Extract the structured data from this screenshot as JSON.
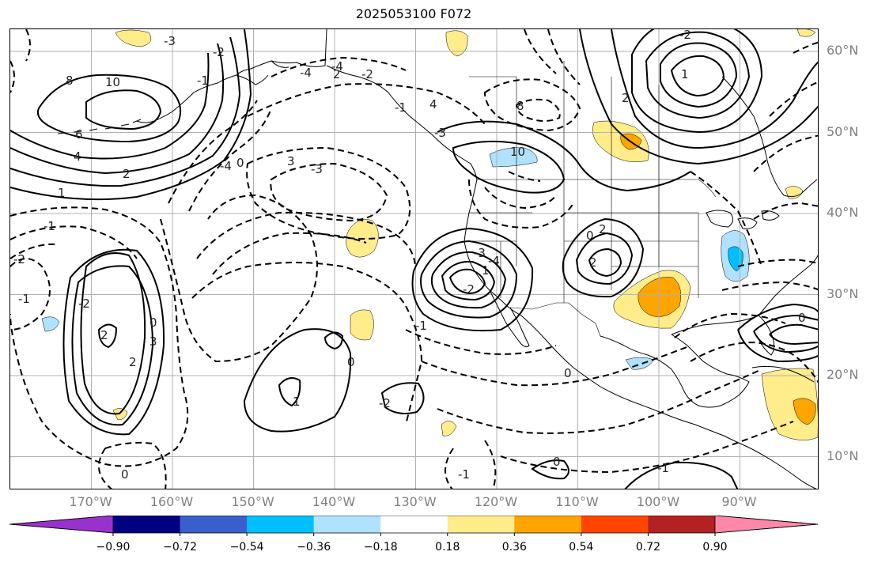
{
  "title": "2025053100 F072",
  "lat_labels": [
    {
      "text": "60°N",
      "lat": 60
    },
    {
      "text": "50°N",
      "lat": 50
    },
    {
      "text": "40°N",
      "lat": 40
    },
    {
      "text": "30°N",
      "lat": 30
    },
    {
      "text": "20°N",
      "lat": 20
    },
    {
      "text": "10°N",
      "lat": 10
    }
  ],
  "lon_labels": [
    {
      "text": "170°W",
      "lon": -170
    },
    {
      "text": "160°W",
      "lon": -160
    },
    {
      "text": "150°W",
      "lon": -150
    },
    {
      "text": "140°W",
      "lon": -140
    },
    {
      "text": "130°W",
      "lon": -130
    },
    {
      "text": "120°W",
      "lon": -120
    },
    {
      "text": "110°W",
      "lon": -110
    },
    {
      "text": "100°W",
      "lon": -100
    },
    {
      "text": "90°W",
      "lon": -90
    }
  ],
  "colorbar": {
    "tick_labels": [
      "−0.90",
      "−0.72",
      "−0.54",
      "−0.36",
      "−0.18",
      "0.18",
      "0.36",
      "0.54",
      "0.72",
      "0.90"
    ],
    "under_color": "#9932cc",
    "over_color": "#ff88aa",
    "colors": [
      "#9932cc",
      "#000080",
      "#3a5fcd",
      "#00bfff",
      "#b0e2ff",
      "#ffffff",
      "#ffec8b",
      "#ffa500",
      "#ff4500",
      "#b22222",
      "#ff88aa"
    ]
  },
  "contour_labels": [
    "8",
    "10",
    "6",
    "4",
    "2",
    "1",
    "-1",
    "-2",
    "3",
    "-3",
    "-4",
    "0",
    "-1",
    "-2",
    "2",
    "3",
    "2",
    "0",
    "-2",
    "1",
    "2",
    "8",
    "10",
    "4",
    "-1",
    "-2",
    "2",
    "-4",
    "-3",
    "-2",
    "-1",
    "0",
    "1",
    "-2",
    "-1",
    "0",
    "2",
    "2",
    "-3",
    "-4",
    "-2",
    "1",
    "0",
    "-1",
    "0",
    "-1",
    "0",
    "0",
    "-4",
    "-3"
  ]
}
